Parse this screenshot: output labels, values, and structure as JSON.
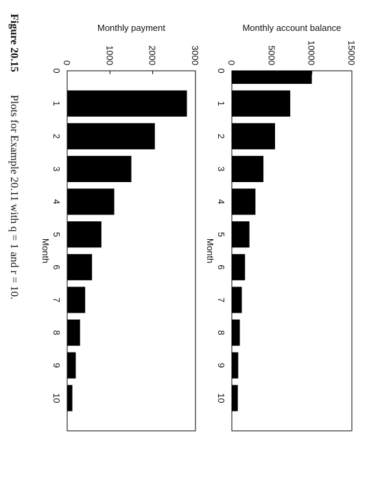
{
  "chart_data": [
    {
      "type": "bar",
      "ylabel": "Monthly account balance",
      "xlabel": "Month",
      "x": [
        0,
        1,
        2,
        3,
        4,
        5,
        6,
        7,
        8,
        9,
        10
      ],
      "values": [
        10000,
        7300,
        5400,
        3950,
        2950,
        2200,
        1650,
        1250,
        1000,
        800,
        750
      ],
      "color": "#000000",
      "xlim": [
        0,
        11
      ],
      "xticks": [
        0,
        1,
        2,
        3,
        4,
        5,
        6,
        7,
        8,
        9,
        10
      ],
      "ylim": [
        0,
        15000
      ],
      "yticks": [
        0,
        5000,
        10000,
        15000
      ]
    },
    {
      "type": "bar",
      "ylabel": "Monthly payment",
      "xlabel": "Month",
      "x": [
        1,
        2,
        3,
        4,
        5,
        6,
        7,
        8,
        9,
        10
      ],
      "values": [
        2800,
        2050,
        1500,
        1100,
        800,
        580,
        420,
        300,
        200,
        120
      ],
      "color": "#000000",
      "xlim": [
        0,
        11
      ],
      "xticks": [
        0,
        1,
        2,
        3,
        4,
        5,
        6,
        7,
        8,
        9,
        10
      ],
      "ylim": [
        0,
        3000
      ],
      "yticks": [
        0,
        1000,
        2000,
        3000
      ]
    }
  ],
  "caption": {
    "label": "Figure 20.15",
    "text": "Plots for Example 20.11 with q = 1 and r = 10."
  }
}
